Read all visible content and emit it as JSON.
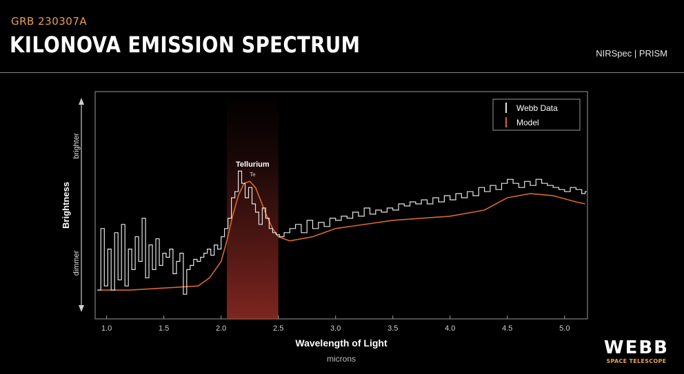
{
  "header": {
    "eyebrow": "GRB 230307A",
    "title": "KILONOVA EMISSION SPECTRUM",
    "instrument": "NIRSpec | PRISM"
  },
  "logo": {
    "word": "WEBB",
    "subtitle": "SPACE TELESCOPE"
  },
  "colors": {
    "background": "#000000",
    "eyebrow": "#e8a24c",
    "data_line": "#e6e6e6",
    "model_line": "#d96a2a",
    "highlight_band": "#a8322a"
  },
  "chart_data": {
    "type": "line",
    "xlabel": "Wavelength of Light",
    "xunit": "microns",
    "ylabel": "Brightness",
    "y_high_label": "brighter",
    "y_low_label": "dimmer",
    "xlim": [
      0.9,
      5.2
    ],
    "ylim": [
      0,
      100
    ],
    "x_ticks": [
      1.0,
      1.5,
      2.0,
      2.5,
      3.0,
      3.5,
      4.0,
      4.5,
      5.0
    ],
    "x_tick_labels": [
      "1.0",
      "1.5",
      "2.0",
      "2.5",
      "3.0",
      "3.5",
      "4.0",
      "4.5",
      "5.0"
    ],
    "grid": false,
    "legend_position": "top-right",
    "annotations": [
      {
        "label": "Tellurium",
        "sublabel": "Te",
        "x_range": [
          2.05,
          2.5
        ]
      }
    ],
    "series": [
      {
        "name": "Webb Data",
        "x": [
          0.92,
          0.95,
          0.98,
          1.01,
          1.04,
          1.07,
          1.1,
          1.13,
          1.16,
          1.19,
          1.22,
          1.25,
          1.28,
          1.31,
          1.34,
          1.37,
          1.4,
          1.43,
          1.46,
          1.49,
          1.52,
          1.55,
          1.58,
          1.61,
          1.64,
          1.67,
          1.7,
          1.73,
          1.76,
          1.79,
          1.82,
          1.85,
          1.88,
          1.91,
          1.94,
          1.97,
          2.0,
          2.03,
          2.06,
          2.09,
          2.12,
          2.15,
          2.18,
          2.21,
          2.24,
          2.27,
          2.3,
          2.33,
          2.36,
          2.39,
          2.42,
          2.45,
          2.48,
          2.51,
          2.55,
          2.6,
          2.65,
          2.7,
          2.75,
          2.8,
          2.85,
          2.9,
          2.95,
          3.0,
          3.05,
          3.1,
          3.15,
          3.2,
          3.25,
          3.3,
          3.35,
          3.4,
          3.45,
          3.5,
          3.55,
          3.6,
          3.65,
          3.7,
          3.75,
          3.8,
          3.85,
          3.9,
          3.95,
          4.0,
          4.05,
          4.1,
          4.15,
          4.2,
          4.25,
          4.3,
          4.35,
          4.4,
          4.45,
          4.5,
          4.55,
          4.6,
          4.65,
          4.7,
          4.75,
          4.8,
          4.85,
          4.9,
          4.95,
          5.0,
          5.05,
          5.1,
          5.15,
          5.18
        ],
        "values": [
          10,
          40,
          12,
          30,
          10,
          38,
          15,
          42,
          12,
          30,
          20,
          36,
          24,
          45,
          16,
          32,
          20,
          35,
          22,
          28,
          26,
          30,
          18,
          24,
          28,
          8,
          20,
          22,
          25,
          24,
          26,
          28,
          30,
          27,
          32,
          30,
          36,
          40,
          45,
          55,
          58,
          68,
          62,
          55,
          60,
          52,
          48,
          42,
          50,
          45,
          40,
          38,
          37,
          36,
          38,
          40,
          42,
          38,
          44,
          40,
          43,
          41,
          45,
          44,
          46,
          45,
          48,
          46,
          50,
          47,
          49,
          48,
          50,
          49,
          52,
          51,
          53,
          52,
          54,
          52,
          55,
          53,
          56,
          54,
          57,
          55,
          58,
          56,
          60,
          58,
          61,
          59,
          62,
          64,
          62,
          60,
          63,
          61,
          64,
          62,
          61,
          60,
          59,
          58,
          60,
          59,
          57,
          58
        ]
      },
      {
        "name": "Model",
        "x": [
          0.92,
          1.2,
          1.5,
          1.8,
          1.9,
          2.0,
          2.05,
          2.1,
          2.15,
          2.2,
          2.25,
          2.3,
          2.35,
          2.4,
          2.45,
          2.5,
          2.6,
          2.8,
          3.0,
          3.5,
          4.0,
          4.3,
          4.5,
          4.7,
          4.9,
          5.1,
          5.18
        ],
        "values": [
          10,
          10,
          11,
          12,
          16,
          24,
          34,
          46,
          56,
          62,
          63,
          60,
          53,
          46,
          40,
          36,
          34,
          36,
          40,
          44,
          46,
          49,
          55,
          57,
          56,
          53,
          52
        ]
      }
    ]
  }
}
